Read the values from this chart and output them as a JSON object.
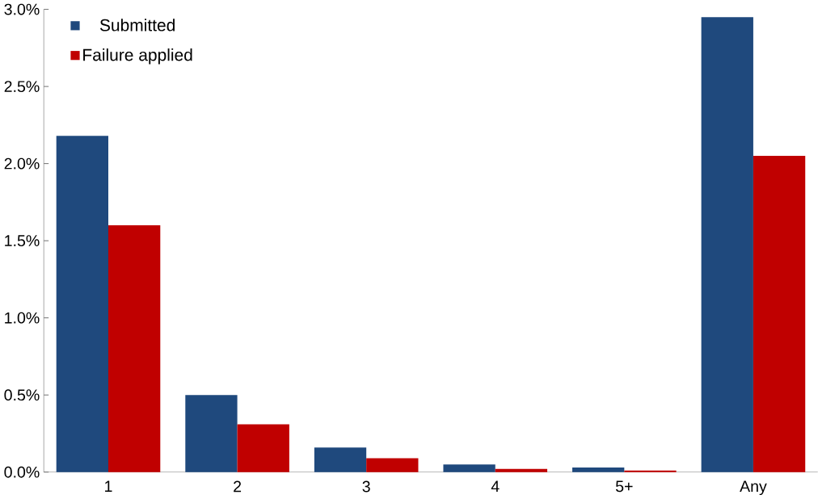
{
  "chart_data": {
    "type": "bar",
    "categories": [
      "1",
      "2",
      "3",
      "4",
      "5+",
      "Any"
    ],
    "series": [
      {
        "name": "Submitted",
        "color": "#1f497d",
        "values": [
          2.18,
          0.5,
          0.16,
          0.05,
          0.03,
          2.95
        ]
      },
      {
        "name": "Failure applied",
        "color": "#c00000",
        "values": [
          1.6,
          0.31,
          0.09,
          0.02,
          0.01,
          2.05
        ]
      }
    ],
    "ylim": [
      0,
      3.0
    ],
    "yticks": [
      {
        "value": 0,
        "label": "0.0%"
      },
      {
        "value": 0.5,
        "label": "0.5%"
      },
      {
        "value": 1.0,
        "label": "1.0%"
      },
      {
        "value": 1.5,
        "label": "1.5%"
      },
      {
        "value": 2.0,
        "label": "2.0%"
      },
      {
        "value": 2.5,
        "label": "2.5%"
      },
      {
        "value": 3.0,
        "label": "3.0%"
      }
    ],
    "grid": false,
    "legend": "top left"
  }
}
